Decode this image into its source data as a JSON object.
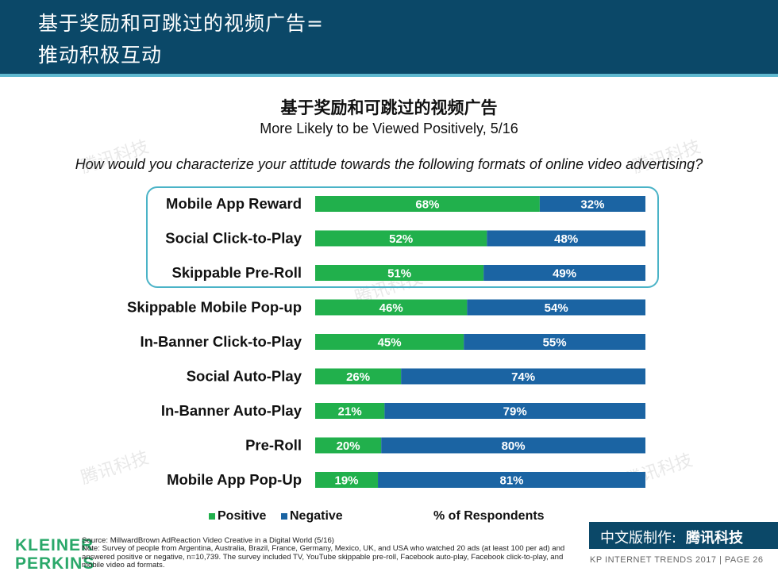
{
  "header": {
    "line1": "基于奖励和可跳过的视频广告=",
    "line2": "推动积极互动"
  },
  "title": "基于奖励和可跳过的视频广告",
  "subtitle": "More Likely to be Viewed Positively, 5/16",
  "question": "How would you characterize your attitude towards the following formats of online video advertising?",
  "legend": {
    "positive": "Positive",
    "negative": "Negative",
    "axis_note": "% of Respondents"
  },
  "colors": {
    "positive": "#21b04c",
    "negative": "#1b64a3",
    "header": "#0b4868",
    "highlight": "#4ab3c7"
  },
  "chart_data": {
    "type": "bar",
    "orientation": "horizontal",
    "stacked": true,
    "categories": [
      "Mobile App Reward",
      "Social Click-to-Play",
      "Skippable Pre-Roll",
      "Skippable Mobile Pop-up",
      "In-Banner Click-to-Play",
      "Social Auto-Play",
      "In-Banner Auto-Play",
      "Pre-Roll",
      "Mobile App Pop-Up"
    ],
    "series": [
      {
        "name": "Positive",
        "values": [
          68,
          52,
          51,
          46,
          45,
          26,
          21,
          20,
          19
        ]
      },
      {
        "name": "Negative",
        "values": [
          32,
          48,
          49,
          54,
          55,
          74,
          79,
          80,
          81
        ]
      }
    ],
    "unit": "%",
    "xlabel": "% of Respondents",
    "xlim": [
      0,
      100
    ],
    "grid": false,
    "legend_position": "bottom-left",
    "highlighted_categories": [
      "Mobile App Reward",
      "Social Click-to-Play",
      "Skippable Pre-Roll"
    ]
  },
  "source": {
    "line1": "Source: MillwardBrown AdReaction Video Creative in a Digital World (5/16)",
    "note": "Note: Survey of people from Argentina, Australia, Brazil, France, Germany, Mexico, UK, and USA who watched 20 ads (at least 100 per ad) and answered positive or negative, n=10,739. The survey included TV, YouTube skippable pre-roll, Facebook auto-play, Facebook click-to-play, and mobile video ad formats."
  },
  "logo": {
    "line1": "KLEINER",
    "line2": "PERKINS"
  },
  "cn_banner": {
    "prefix": "中文版制作:",
    "brand": "腾讯科技"
  },
  "footer": "KP INTERNET TRENDS 2017 | PAGE 26",
  "watermark": "腾讯科技"
}
